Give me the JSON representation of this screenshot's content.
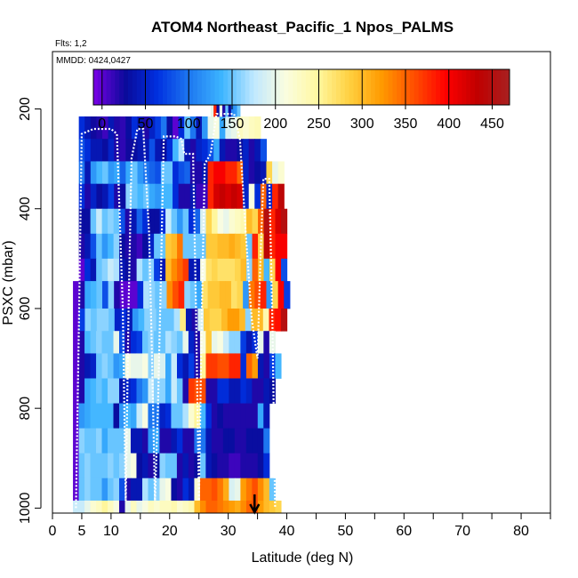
{
  "chart_data": {
    "type": "heatmap",
    "title": "ATOM4 Northeast_Pacific_1 Npos_PALMS",
    "flights_label": "Flts: 1,2",
    "date_label": "MMDD: 0424,0427",
    "xlabel": "Latitude (deg N)",
    "ylabel": "PSXC (mbar)",
    "xlim": [
      0,
      85
    ],
    "ylim": [
      1010,
      85
    ],
    "x_ticks": [
      0,
      5,
      10,
      20,
      30,
      40,
      50,
      60,
      70,
      80
    ],
    "y_ticks": [
      200,
      400,
      600,
      800,
      1000
    ],
    "colorbar": {
      "min": -10,
      "max": 470,
      "ticks": [
        0,
        50,
        100,
        150,
        200,
        250,
        300,
        350,
        400,
        450
      ],
      "colors": [
        "#7a00e6",
        "#0a0a9a",
        "#0030e0",
        "#1e78f0",
        "#3cb4ff",
        "#bfe8ff",
        "#fafde0",
        "#fff8a0",
        "#ffd040",
        "#ff9a00",
        "#ff5000",
        "#ff0000",
        "#c00000",
        "#a82020"
      ]
    },
    "arrow_x": 34.5,
    "grid": false,
    "legend": "none",
    "rows": [
      {
        "p_top": 215,
        "p_bot": 260,
        "x_start": 4.5,
        "x_end": 35.5,
        "values": [
          60,
          40,
          25,
          20,
          10,
          40,
          20,
          15,
          30,
          60,
          40,
          20,
          50,
          70,
          100,
          30,
          0,
          60,
          150,
          100,
          40,
          120,
          200,
          210,
          130,
          190,
          200,
          230,
          220,
          230,
          235
        ]
      },
      {
        "p_top": 260,
        "p_bot": 305,
        "x_start": 4.5,
        "x_end": 36.5,
        "values": [
          80,
          60,
          40,
          40,
          30,
          50,
          20,
          15,
          25,
          30,
          40,
          40,
          80,
          40,
          30,
          60,
          140,
          170,
          40,
          20,
          50,
          60,
          80,
          130,
          40,
          20,
          20,
          30,
          50,
          20,
          40,
          80
        ]
      },
      {
        "p_top": 305,
        "p_bot": 350,
        "x_start": 4.5,
        "x_end": 39.5,
        "values": [
          100,
          40,
          120,
          140,
          150,
          120,
          130,
          90,
          130,
          150,
          120,
          100,
          90,
          80,
          150,
          150,
          60,
          80,
          90,
          20,
          20,
          40,
          380,
          400,
          400,
          380,
          380,
          350,
          50,
          20,
          30,
          40,
          280,
          200,
          220
        ]
      },
      {
        "p_top": 350,
        "p_bot": 400,
        "x_start": 4.5,
        "x_end": 39.5,
        "values": [
          60,
          20,
          50,
          30,
          40,
          70,
          20,
          30,
          160,
          150,
          140,
          150,
          130,
          120,
          140,
          140,
          60,
          20,
          20,
          40,
          10,
          10,
          380,
          420,
          430,
          420,
          430,
          420,
          50,
          210,
          60,
          350,
          50,
          380,
          440
        ]
      },
      {
        "p_top": 400,
        "p_bot": 450,
        "x_start": 4.5,
        "x_end": 40,
        "values": [
          30,
          30,
          150,
          180,
          150,
          160,
          150,
          80,
          20,
          40,
          90,
          60,
          30,
          30,
          60,
          180,
          150,
          120,
          150,
          60,
          90,
          190,
          280,
          250,
          210,
          200,
          220,
          230,
          240,
          300,
          280,
          350,
          450,
          380,
          420,
          450
        ]
      },
      {
        "p_top": 450,
        "p_bot": 500,
        "x_start": 4.5,
        "x_end": 40,
        "values": [
          20,
          40,
          80,
          150,
          120,
          140,
          160,
          30,
          20,
          20,
          10,
          30,
          50,
          150,
          150,
          290,
          300,
          340,
          150,
          150,
          150,
          150,
          290,
          290,
          300,
          300,
          310,
          300,
          290,
          150,
          380,
          280,
          440,
          380,
          400,
          400
        ]
      },
      {
        "p_top": 500,
        "p_bot": 545,
        "x_start": 4.5,
        "x_end": 40,
        "values": [
          0,
          60,
          40,
          150,
          160,
          180,
          170,
          40,
          30,
          20,
          170,
          150,
          160,
          70,
          40,
          300,
          330,
          350,
          370,
          40,
          40,
          210,
          270,
          280,
          270,
          270,
          270,
          280,
          300,
          160,
          350,
          300,
          140,
          280,
          400,
          80
        ]
      },
      {
        "p_top": 545,
        "p_bot": 600,
        "x_start": 3.5,
        "x_end": 40.5,
        "values": [
          0,
          20,
          130,
          140,
          150,
          80,
          160,
          20,
          0,
          0,
          0,
          60,
          170,
          160,
          150,
          160,
          330,
          360,
          380,
          160,
          150,
          130,
          270,
          290,
          290,
          300,
          300,
          270,
          280,
          120,
          340,
          360,
          380,
          120,
          280,
          400,
          70
        ]
      },
      {
        "p_top": 600,
        "p_bot": 645,
        "x_start": 3.5,
        "x_end": 40,
        "values": [
          0,
          70,
          160,
          150,
          160,
          160,
          150,
          50,
          60,
          40,
          120,
          140,
          160,
          160,
          150,
          150,
          150,
          170,
          260,
          40,
          20,
          190,
          290,
          280,
          280,
          300,
          320,
          320,
          300,
          160,
          300,
          300,
          240,
          380,
          390,
          450
        ]
      },
      {
        "p_top": 645,
        "p_bot": 690,
        "x_start": 3.5,
        "x_end": 38,
        "values": [
          0,
          20,
          140,
          150,
          160,
          150,
          150,
          200,
          80,
          20,
          60,
          70,
          150,
          160,
          150,
          150,
          170,
          160,
          150,
          200,
          50,
          20,
          210,
          290,
          200,
          210,
          180,
          160,
          160,
          70,
          40,
          60,
          200,
          20,
          200
        ]
      },
      {
        "p_top": 690,
        "p_bot": 740,
        "x_start": 3.5,
        "x_end": 39,
        "values": [
          0,
          20,
          40,
          50,
          150,
          160,
          150,
          120,
          130,
          210,
          200,
          200,
          210,
          160,
          200,
          190,
          130,
          180,
          60,
          40,
          70,
          20,
          250,
          370,
          370,
          360,
          360,
          380,
          380,
          60,
          350,
          320,
          40,
          20,
          70,
          140
        ]
      },
      {
        "p_top": 740,
        "p_bot": 790,
        "x_start": 3.5,
        "x_end": 38,
        "values": [
          0,
          20,
          130,
          140,
          150,
          140,
          160,
          160,
          40,
          50,
          60,
          100,
          120,
          180,
          160,
          160,
          130,
          180,
          150,
          20,
          370,
          360,
          360,
          20,
          20,
          60,
          60,
          40,
          40,
          60,
          50,
          20,
          20,
          40,
          30
        ]
      },
      {
        "p_top": 790,
        "p_bot": 840,
        "x_start": 3.5,
        "x_end": 37,
        "values": [
          0,
          120,
          130,
          140,
          140,
          140,
          140,
          30,
          120,
          140,
          130,
          180,
          210,
          100,
          100,
          50,
          60,
          150,
          150,
          170,
          220,
          250,
          140,
          60,
          20,
          30,
          20,
          20,
          20,
          20,
          20,
          20,
          130,
          40
        ]
      },
      {
        "p_top": 840,
        "p_bot": 890,
        "x_start": 3.5,
        "x_end": 37,
        "values": [
          0,
          160,
          150,
          150,
          160,
          130,
          150,
          150,
          150,
          200,
          40,
          40,
          20,
          120,
          130,
          20,
          20,
          40,
          60,
          20,
          20,
          100,
          100,
          40,
          20,
          20,
          30,
          30,
          20,
          20,
          30,
          30,
          30,
          100
        ]
      },
      {
        "p_top": 890,
        "p_bot": 940,
        "x_start": 3.5,
        "x_end": 37,
        "values": [
          0,
          150,
          160,
          150,
          150,
          150,
          160,
          150,
          160,
          200,
          210,
          30,
          40,
          20,
          30,
          160,
          150,
          150,
          20,
          40,
          20,
          30,
          150,
          40,
          30,
          20,
          20,
          10,
          10,
          20,
          20,
          20,
          30,
          60
        ]
      },
      {
        "p_top": 940,
        "p_bot": 985,
        "x_start": 3.5,
        "x_end": 38,
        "values": [
          0,
          150,
          160,
          150,
          150,
          120,
          150,
          160,
          80,
          20,
          40,
          40,
          170,
          150,
          160,
          200,
          210,
          30,
          20,
          60,
          40,
          220,
          350,
          350,
          360,
          340,
          310,
          190,
          200,
          320,
          340,
          360,
          330,
          300,
          150
        ]
      },
      {
        "p_top": 985,
        "p_bot": 1010,
        "x_start": 3.5,
        "x_end": 39,
        "values": [
          180,
          180,
          200,
          220,
          230,
          250,
          230,
          210,
          20,
          200,
          230,
          200,
          210,
          230,
          220,
          230,
          230,
          240,
          220,
          230,
          240,
          300,
          330,
          350,
          350,
          340,
          330,
          320,
          310,
          330,
          350,
          360,
          320,
          300,
          290,
          280
        ]
      },
      {
        "p_top": 160,
        "p_bot": 215,
        "x_start": 27,
        "x_end": 32,
        "values": [
          200,
          380,
          30,
          200,
          20,
          150,
          30,
          110,
          120,
          150
        ]
      }
    ],
    "flight_track": [
      [
        4,
        1000
      ],
      [
        4.5,
        650
      ],
      [
        5,
        250
      ],
      [
        7,
        240
      ],
      [
        10,
        240
      ],
      [
        11,
        250
      ],
      [
        12,
        600
      ],
      [
        12.5,
        985
      ],
      [
        13,
        600
      ],
      [
        13.5,
        300
      ],
      [
        14.5,
        240
      ],
      [
        15.5,
        240
      ],
      [
        16.5,
        450
      ],
      [
        17,
        700
      ],
      [
        17.5,
        985
      ],
      [
        18,
        800
      ],
      [
        18.5,
        540
      ],
      [
        19,
        255
      ],
      [
        21,
        255
      ],
      [
        22,
        260
      ],
      [
        22.5,
        290
      ],
      [
        24,
        290
      ],
      [
        24.5,
        600
      ],
      [
        25,
        985
      ],
      [
        25.5,
        600
      ],
      [
        26,
        310
      ],
      [
        27,
        290
      ],
      [
        28,
        210
      ],
      [
        30,
        210
      ],
      [
        31,
        210
      ],
      [
        32,
        260
      ],
      [
        33,
        450
      ],
      [
        34,
        620
      ],
      [
        35,
        700
      ],
      [
        35.5,
        500
      ],
      [
        36,
        340
      ],
      [
        37,
        340
      ],
      [
        37.5,
        600
      ],
      [
        38,
        1000
      ]
    ]
  }
}
